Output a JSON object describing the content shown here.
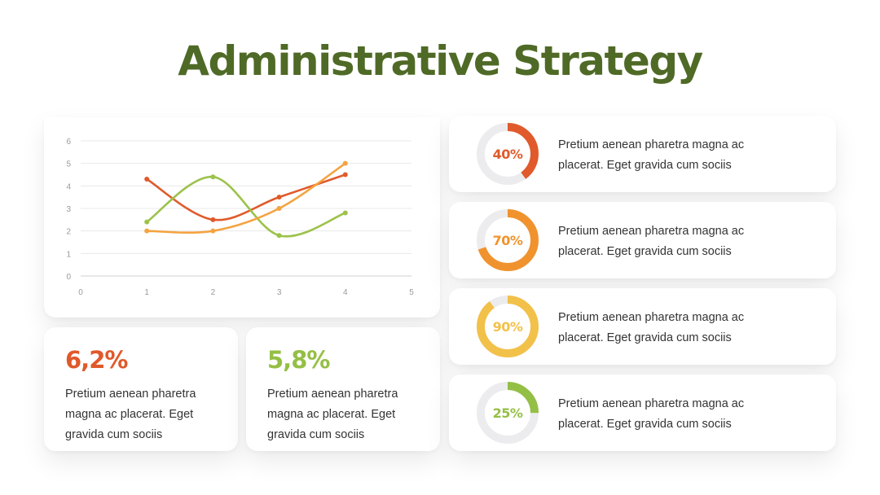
{
  "title": "Administrative Strategy",
  "chart_data": {
    "type": "line",
    "x_ticks": [
      "0",
      "1",
      "2",
      "3",
      "4",
      "5"
    ],
    "y_ticks": [
      "0",
      "1",
      "2",
      "3",
      "4",
      "5",
      "6"
    ],
    "xlim": [
      0,
      5
    ],
    "ylim": [
      0,
      6
    ],
    "grid": true,
    "smooth": true,
    "series": [
      {
        "color": "#e05a2b",
        "x": [
          1,
          2,
          3,
          4
        ],
        "values": [
          4.3,
          2.5,
          3.5,
          4.5
        ]
      },
      {
        "color": "#9cc24a",
        "x": [
          1,
          2,
          3,
          4
        ],
        "values": [
          2.4,
          4.4,
          1.8,
          2.8
        ]
      },
      {
        "color": "#f4a340",
        "x": [
          1,
          2,
          3,
          4
        ],
        "values": [
          2.0,
          2.0,
          3.0,
          5.0
        ]
      }
    ]
  },
  "stats": [
    {
      "value": "6,2%",
      "text": "Pretium aenean pharetra magna ac placerat. Eget gravida cum sociis"
    },
    {
      "value": "5,8%",
      "text": "Pretium aenean pharetra magna ac placerat. Eget gravida cum sociis"
    }
  ],
  "progress": [
    {
      "label": "40%",
      "fraction": 0.4,
      "color": "#e05a2b",
      "text": "Pretium aenean pharetra magna ac placerat. Eget gravida cum sociis"
    },
    {
      "label": "70%",
      "fraction": 0.7,
      "color": "#f0932e",
      "text": "Pretium aenean pharetra magna ac placerat. Eget gravida cum sociis"
    },
    {
      "label": "90%",
      "fraction": 0.9,
      "color": "#f2c14a",
      "text": "Pretium aenean pharetra magna ac placerat. Eget gravida cum sociis"
    },
    {
      "label": "25%",
      "fraction": 0.25,
      "color": "#94bf45",
      "text": "Pretium aenean pharetra magna ac placerat. Eget gravida cum sociis"
    }
  ]
}
